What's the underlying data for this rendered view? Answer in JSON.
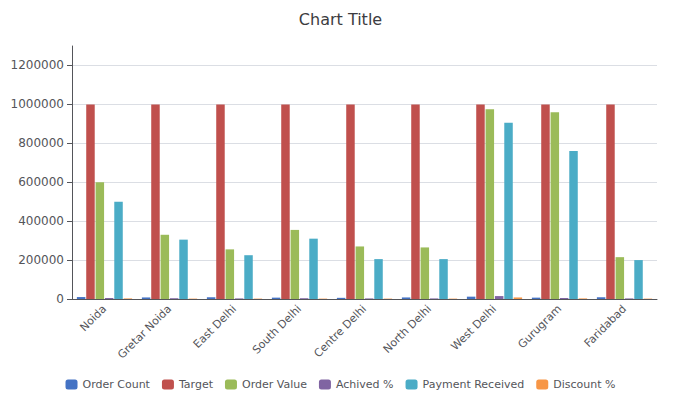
{
  "chart_data": {
    "type": "bar",
    "title": "Chart Title",
    "categories": [
      "Noida",
      "Gretar Noida",
      "East Delhi",
      "South Delhi",
      "Centre Delhi",
      "North Delhi",
      "West Delhi",
      "Gurugram",
      "Faridabad"
    ],
    "series": [
      {
        "name": "Order Count",
        "color": "#4472C4",
        "values": [
          10000,
          8000,
          9000,
          7000,
          6000,
          8000,
          12000,
          7000,
          9000
        ]
      },
      {
        "name": "Target",
        "color": "#C0504D",
        "values": [
          1000000,
          1000000,
          1000000,
          1000000,
          1000000,
          1000000,
          1000000,
          1000000,
          1000000
        ]
      },
      {
        "name": "Order Value",
        "color": "#9BBB59",
        "values": [
          600000,
          330000,
          255000,
          355000,
          270000,
          265000,
          975000,
          960000,
          215000
        ]
      },
      {
        "name": "Achived %",
        "color": "#8064A2",
        "values": [
          5000,
          4000,
          3000,
          4000,
          3000,
          3000,
          15000,
          5000,
          3000
        ]
      },
      {
        "name": "Payment Received",
        "color": "#4BACC6",
        "values": [
          500000,
          305000,
          225000,
          310000,
          205000,
          205000,
          905000,
          760000,
          200000
        ]
      },
      {
        "name": "Discount %",
        "color": "#F79646",
        "values": [
          3000,
          2000,
          2000,
          2000,
          2000,
          2000,
          8000,
          3000,
          2000
        ]
      }
    ],
    "ylim": [
      0,
      1300000
    ],
    "yticks": [
      0,
      200000,
      400000,
      600000,
      800000,
      1000000,
      1200000
    ],
    "grid": true,
    "legend": "bottom"
  }
}
